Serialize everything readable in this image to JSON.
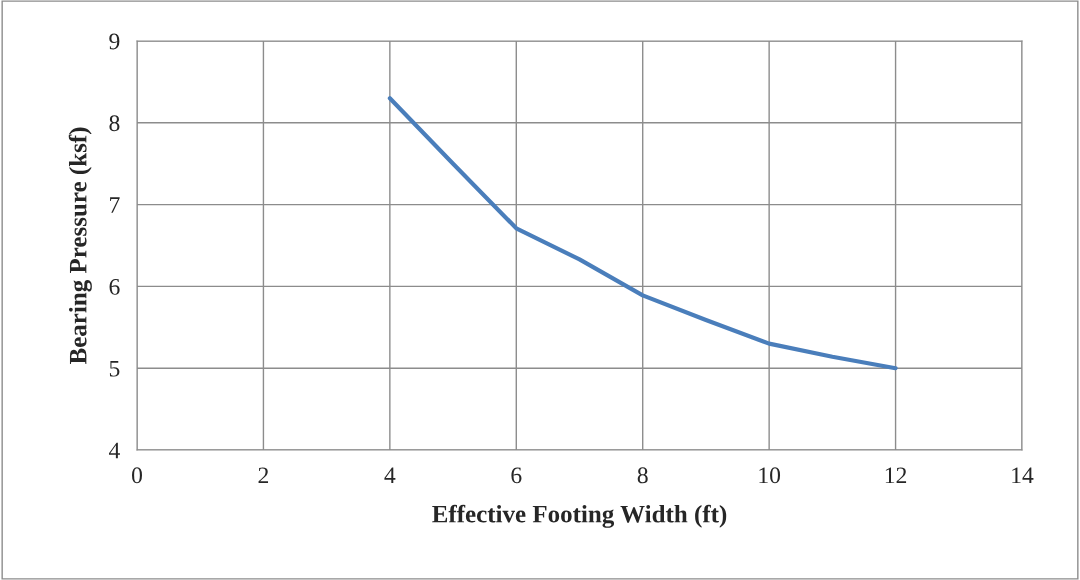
{
  "chart_data": {
    "type": "line",
    "xlabel": "Effective Footing Width (ft)",
    "ylabel": "Bearing Pressure (ksf)",
    "x": [
      4,
      5,
      6,
      7,
      8,
      9,
      10,
      11,
      12
    ],
    "series": [
      {
        "color": "#4a7ebb",
        "values": [
          8.3,
          7.5,
          6.71,
          6.33,
          5.89,
          5.59,
          5.3,
          5.14,
          5.0
        ]
      }
    ],
    "xlim": [
      0,
      14
    ],
    "xticks": [
      0,
      2,
      4,
      6,
      8,
      10,
      12,
      14
    ],
    "ylim": [
      4,
      9
    ],
    "yticks": [
      4,
      5,
      6,
      7,
      8,
      9
    ],
    "grid": true,
    "marker": "none",
    "line_style": "solid"
  }
}
